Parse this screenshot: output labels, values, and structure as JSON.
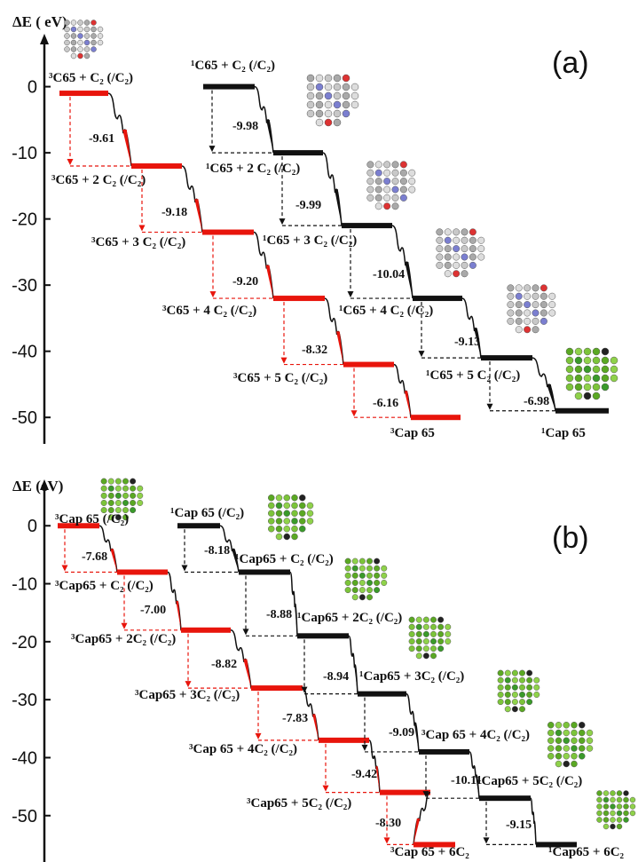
{
  "chart_data": [
    {
      "type": "energy-diagram",
      "panel_label": "(a)",
      "y_label": "ΔE ( eV)",
      "ylim": [
        -54,
        8
      ],
      "yticks": [
        0,
        -10,
        -20,
        -30,
        -40,
        -50
      ],
      "series": [
        {
          "color": "#e8150c",
          "levels": [
            -1,
            -12,
            -22,
            -32,
            -42,
            -50
          ],
          "level_labels": [
            "³C65 + C₂ (/C₂)",
            "³C65 + 2 C₂ (/C₂)",
            "³C65 + 3 C₂ (/C₂)",
            "³C65 + 4 C₂ (/C₂)",
            "³C65 + 5 C₂ (/C₂)",
            "³Cap 65"
          ],
          "step_labels": [
            "-9.61",
            "-9.18",
            "-9.20",
            "-8.32",
            "-6.16"
          ]
        },
        {
          "color": "#111111",
          "levels": [
            0,
            -10,
            -21,
            -32,
            -41,
            -49
          ],
          "level_labels": [
            "¹C65 + C₂ (/C₂)",
            "¹C65 + 2 C₂ (/C₂)",
            "¹C65 + 3 C₂ (/C₂)",
            "¹C65 + 4 C₂ (/C₂)",
            "¹C65 + 5 C₂ (/C₂)",
            "¹Cap 65"
          ],
          "step_labels": [
            "-9.98",
            "-9.99",
            "-10.04",
            "-9.13",
            "-6.98"
          ]
        }
      ]
    },
    {
      "type": "energy-diagram",
      "panel_label": "(b)",
      "y_label": "ΔE (eV)",
      "ylim": [
        -58,
        8
      ],
      "yticks": [
        0,
        -10,
        -20,
        -30,
        -40,
        -50
      ],
      "series": [
        {
          "color": "#e8150c",
          "levels": [
            0,
            -8,
            -18,
            -28,
            -37,
            -46,
            -55
          ],
          "level_labels": [
            "³Cap 65 (/C₂)",
            "³Cap65 + C₂ (/C₂)",
            "³Cap65 + 2C₂ (/C₂)",
            "³Cap65 + 3C₂ (/C₂)",
            "³Cap 65 + 4C₂ (/C₂)",
            "³Cap65 + 5C₂ (/C₂)",
            "³Cap 65 + 6C₂"
          ],
          "step_labels": [
            "-7.68",
            "-7.00",
            "-8.82",
            "-7.83",
            "-9.42",
            "-8.30"
          ]
        },
        {
          "color": "#111111",
          "levels": [
            0,
            -8,
            -19,
            -29,
            -39,
            -47,
            -55
          ],
          "level_labels": [
            "¹Cap 65 (/C₂)",
            "¹Cap65 + C₂ (/C₂)",
            "¹Cap65 + 2C₂ (/C₂)",
            "¹Cap65 + 3C₂ (/C₂)",
            "³Cap 65 + 4C₂ (/C₂)",
            "¹Cap65 + 5C₂ (/C₂)",
            "¹Cap65 + 6C₂"
          ],
          "step_labels": [
            "-8.18",
            "-8.88",
            "-8.94",
            "-9.09",
            "-10.11",
            "-9.15"
          ]
        }
      ]
    }
  ]
}
